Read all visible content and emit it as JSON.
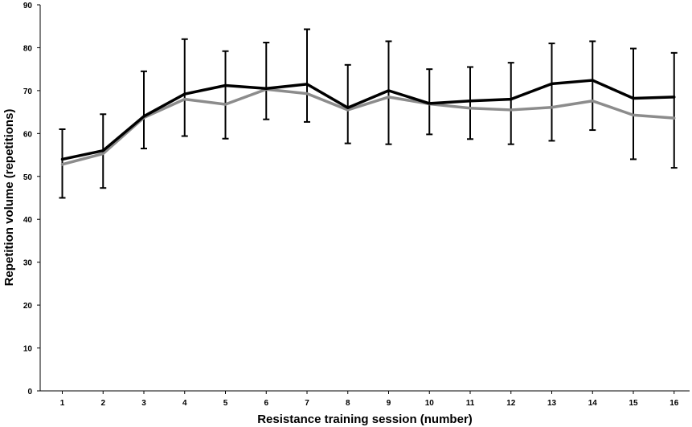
{
  "chart_data": {
    "type": "line",
    "xlabel": "Resistance training session (number)",
    "ylabel": "Repetition volume  (repetitions)",
    "x": [
      1,
      2,
      3,
      4,
      5,
      6,
      7,
      8,
      9,
      10,
      11,
      12,
      13,
      14,
      15,
      16
    ],
    "ylim": [
      0,
      90
    ],
    "yticks": [
      0,
      10,
      20,
      30,
      40,
      50,
      60,
      70,
      80,
      90
    ],
    "grid": false,
    "legend": "none",
    "series": [
      {
        "color": "#000000",
        "values": [
          54,
          56,
          64,
          69.2,
          71.2,
          70.5,
          71.5,
          66,
          70,
          67,
          67.6,
          68,
          71.6,
          72.4,
          68.2,
          68.5
        ],
        "error_upper": [
          61,
          64.5,
          74.5,
          82,
          79.2,
          81.2,
          84.3,
          76,
          81.5,
          75,
          75.5,
          76.5,
          81,
          81.5,
          79.8,
          78.8
        ],
        "error_lower": [
          45,
          47.3,
          56.5,
          59.4,
          58.8,
          63.3,
          62.7,
          57.7,
          57.5,
          59.8,
          58.7,
          57.5,
          58.3,
          60.8,
          54,
          52
        ]
      },
      {
        "color": "#8c8c8c",
        "values": [
          52.8,
          55.3,
          63.7,
          68,
          66.8,
          70.3,
          69.3,
          65.5,
          68.5,
          66.9,
          65.9,
          65.5,
          66.1,
          67.6,
          64.3,
          63.6
        ]
      }
    ]
  }
}
